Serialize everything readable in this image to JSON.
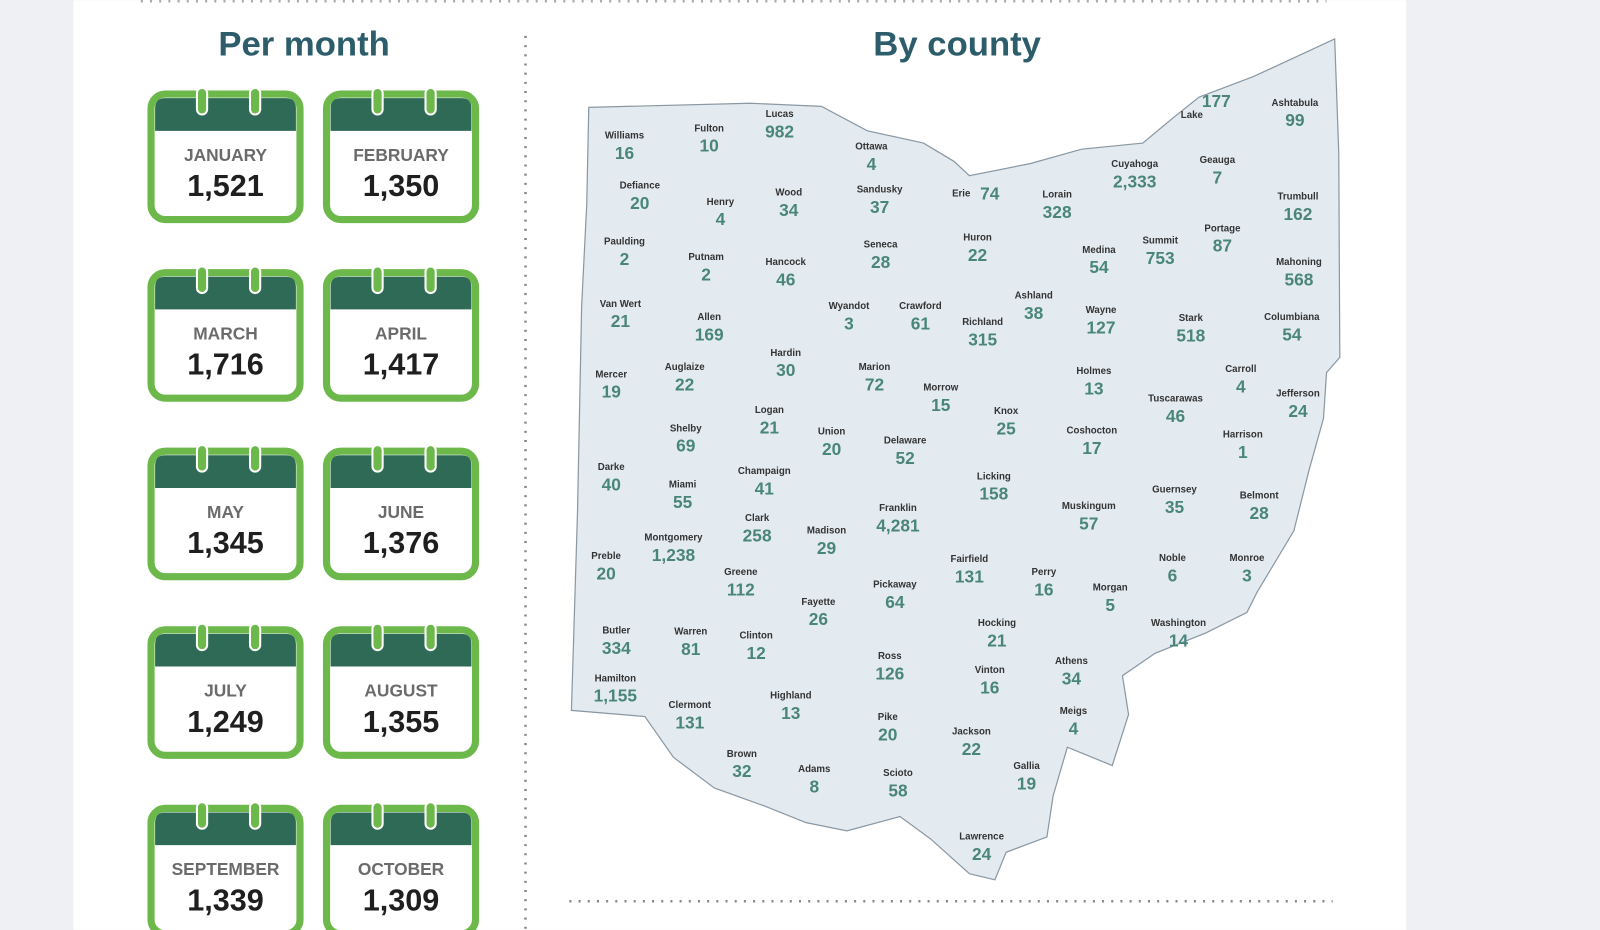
{
  "per_month": {
    "title": "Per month",
    "months": [
      {
        "name": "JANUARY",
        "value": "1,521"
      },
      {
        "name": "FEBRUARY",
        "value": "1,350"
      },
      {
        "name": "MARCH",
        "value": "1,716"
      },
      {
        "name": "APRIL",
        "value": "1,417"
      },
      {
        "name": "MAY",
        "value": "1,345"
      },
      {
        "name": "JUNE",
        "value": "1,376"
      },
      {
        "name": "JULY",
        "value": "1,249"
      },
      {
        "name": "AUGUST",
        "value": "1,355"
      },
      {
        "name": "SEPTEMBER",
        "value": "1,339"
      },
      {
        "name": "OCTOBER",
        "value": "1,309"
      }
    ]
  },
  "by_county": {
    "title": "By county",
    "counties": [
      {
        "name": "Williams",
        "value": "16"
      },
      {
        "name": "Fulton",
        "value": "10"
      },
      {
        "name": "Lucas",
        "value": "982"
      },
      {
        "name": "Ottawa",
        "value": "4"
      },
      {
        "name": "Defiance",
        "value": "20"
      },
      {
        "name": "Henry",
        "value": "4"
      },
      {
        "name": "Wood",
        "value": "34"
      },
      {
        "name": "Sandusky",
        "value": "37"
      },
      {
        "name": "Erie",
        "value": "74"
      },
      {
        "name": "Lorain",
        "value": "328"
      },
      {
        "name": "Cuyahoga",
        "value": "2,333"
      },
      {
        "name": "Lake",
        "value": "177"
      },
      {
        "name": "Geauga",
        "value": "7"
      },
      {
        "name": "Ashtabula",
        "value": "99"
      },
      {
        "name": "Trumbull",
        "value": "162"
      },
      {
        "name": "Paulding",
        "value": "2"
      },
      {
        "name": "Putnam",
        "value": "2"
      },
      {
        "name": "Hancock",
        "value": "46"
      },
      {
        "name": "Seneca",
        "value": "28"
      },
      {
        "name": "Huron",
        "value": "22"
      },
      {
        "name": "Medina",
        "value": "54"
      },
      {
        "name": "Summit",
        "value": "753"
      },
      {
        "name": "Portage",
        "value": "87"
      },
      {
        "name": "Mahoning",
        "value": "568"
      },
      {
        "name": "Van Wert",
        "value": "21"
      },
      {
        "name": "Allen",
        "value": "169"
      },
      {
        "name": "Wyandot",
        "value": "3"
      },
      {
        "name": "Crawford",
        "value": "61"
      },
      {
        "name": "Richland",
        "value": "315"
      },
      {
        "name": "Ashland",
        "value": "38"
      },
      {
        "name": "Wayne",
        "value": "127"
      },
      {
        "name": "Stark",
        "value": "518"
      },
      {
        "name": "Columbiana",
        "value": "54"
      },
      {
        "name": "Hardin",
        "value": "30"
      },
      {
        "name": "Mercer",
        "value": "19"
      },
      {
        "name": "Auglaize",
        "value": "22"
      },
      {
        "name": "Marion",
        "value": "72"
      },
      {
        "name": "Morrow",
        "value": "15"
      },
      {
        "name": "Holmes",
        "value": "13"
      },
      {
        "name": "Carroll",
        "value": "4"
      },
      {
        "name": "Tuscarawas",
        "value": "46"
      },
      {
        "name": "Jefferson",
        "value": "24"
      },
      {
        "name": "Logan",
        "value": "21"
      },
      {
        "name": "Shelby",
        "value": "69"
      },
      {
        "name": "Union",
        "value": "20"
      },
      {
        "name": "Knox",
        "value": "25"
      },
      {
        "name": "Delaware",
        "value": "52"
      },
      {
        "name": "Coshocton",
        "value": "17"
      },
      {
        "name": "Harrison",
        "value": "1"
      },
      {
        "name": "Darke",
        "value": "40"
      },
      {
        "name": "Champaign",
        "value": "41"
      },
      {
        "name": "Miami",
        "value": "55"
      },
      {
        "name": "Licking",
        "value": "158"
      },
      {
        "name": "Guernsey",
        "value": "35"
      },
      {
        "name": "Belmont",
        "value": "28"
      },
      {
        "name": "Franklin",
        "value": "4,281"
      },
      {
        "name": "Muskingum",
        "value": "57"
      },
      {
        "name": "Clark",
        "value": "258"
      },
      {
        "name": "Madison",
        "value": "29"
      },
      {
        "name": "Montgomery",
        "value": "1,238"
      },
      {
        "name": "Preble",
        "value": "20"
      },
      {
        "name": "Fairfield",
        "value": "131"
      },
      {
        "name": "Noble",
        "value": "6"
      },
      {
        "name": "Monroe",
        "value": "3"
      },
      {
        "name": "Greene",
        "value": "112"
      },
      {
        "name": "Perry",
        "value": "16"
      },
      {
        "name": "Morgan",
        "value": "5"
      },
      {
        "name": "Pickaway",
        "value": "64"
      },
      {
        "name": "Fayette",
        "value": "26"
      },
      {
        "name": "Butler",
        "value": "334"
      },
      {
        "name": "Warren",
        "value": "81"
      },
      {
        "name": "Clinton",
        "value": "12"
      },
      {
        "name": "Hocking",
        "value": "21"
      },
      {
        "name": "Washington",
        "value": "14"
      },
      {
        "name": "Ross",
        "value": "126"
      },
      {
        "name": "Athens",
        "value": "34"
      },
      {
        "name": "Vinton",
        "value": "16"
      },
      {
        "name": "Hamilton",
        "value": "1,155"
      },
      {
        "name": "Clermont",
        "value": "131"
      },
      {
        "name": "Highland",
        "value": "13"
      },
      {
        "name": "Meigs",
        "value": "4"
      },
      {
        "name": "Pike",
        "value": "20"
      },
      {
        "name": "Jackson",
        "value": "22"
      },
      {
        "name": "Brown",
        "value": "32"
      },
      {
        "name": "Adams",
        "value": "8"
      },
      {
        "name": "Gallia",
        "value": "19"
      },
      {
        "name": "Scioto",
        "value": "58"
      },
      {
        "name": "Lawrence",
        "value": "24"
      }
    ]
  }
}
